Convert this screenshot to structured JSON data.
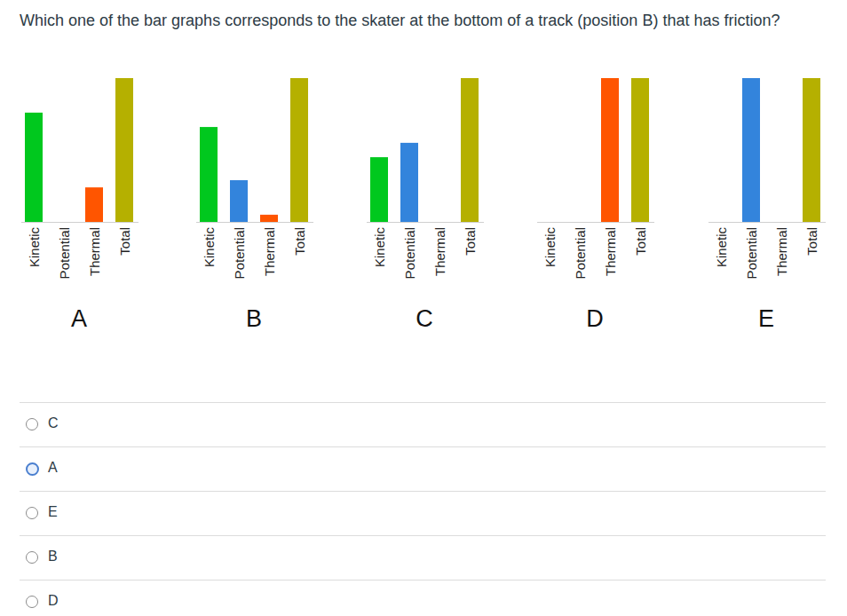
{
  "question": "Which one of the bar graphs corresponds to the skater at the bottom of a track (position B) that has friction?",
  "chart_data": [
    {
      "type": "bar",
      "title": "A",
      "categories": [
        "Kinetic",
        "Potential",
        "Thermal",
        "Total"
      ],
      "values": [
        76,
        0,
        24,
        100
      ],
      "colors": [
        "#00c81e",
        "#3384dc",
        "#ff5500",
        "#b5b000"
      ],
      "ylim": [
        0,
        100
      ],
      "tick_labels": false
    },
    {
      "type": "bar",
      "title": "B",
      "categories": [
        "Kinetic",
        "Potential",
        "Thermal",
        "Total"
      ],
      "values": [
        66,
        29,
        5,
        100
      ],
      "colors": [
        "#00c81e",
        "#3384dc",
        "#ff5500",
        "#b5b000"
      ],
      "ylim": [
        0,
        100
      ],
      "tick_labels": false
    },
    {
      "type": "bar",
      "title": "C",
      "categories": [
        "Kinetic",
        "Potential",
        "Thermal",
        "Total"
      ],
      "values": [
        45,
        55,
        0,
        100
      ],
      "colors": [
        "#00c81e",
        "#3384dc",
        "#ff5500",
        "#b5b000"
      ],
      "ylim": [
        0,
        100
      ],
      "tick_labels": false
    },
    {
      "type": "bar",
      "title": "D",
      "categories": [
        "Kinetic",
        "Potential",
        "Thermal",
        "Total"
      ],
      "values": [
        0,
        0,
        100,
        100
      ],
      "colors": [
        "#00c81e",
        "#3384dc",
        "#ff5500",
        "#b5b000"
      ],
      "ylim": [
        0,
        100
      ],
      "tick_labels": false
    },
    {
      "type": "bar",
      "title": "E",
      "categories": [
        "Kinetic",
        "Potential",
        "Thermal",
        "Total"
      ],
      "values": [
        0,
        100,
        0,
        100
      ],
      "colors": [
        "#00c81e",
        "#3384dc",
        "#ff5500",
        "#b5b000"
      ],
      "ylim": [
        0,
        100
      ],
      "tick_labels": false
    }
  ],
  "options": [
    "C",
    "A",
    "E",
    "B",
    "D"
  ],
  "selected": "A"
}
